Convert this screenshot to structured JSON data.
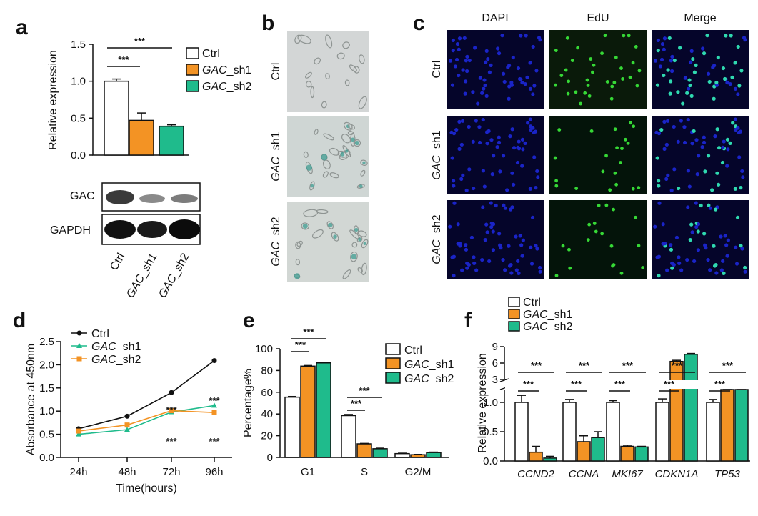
{
  "panel_labels": [
    "a",
    "b",
    "c",
    "d",
    "e",
    "f"
  ],
  "colors": {
    "ctrl": "#ffffff",
    "sh1": "#f39324",
    "sh2": "#1fbb8c",
    "edge": "#111111",
    "dapi": "#1a24c8",
    "edu": "#36d836"
  },
  "panel_b": {
    "row_labels": [
      "Ctrl",
      "GAC_sh1",
      "GAC_sh2"
    ]
  },
  "panel_c": {
    "col_labels": [
      "DAPI",
      "EdU",
      "Merge"
    ],
    "row_labels": [
      "Ctrl",
      "GAC_sh1",
      "GAC_sh2"
    ]
  },
  "western": {
    "labels": [
      "GAC",
      "GAPDH"
    ],
    "lanes": [
      "Ctrl",
      "GAC_sh1",
      "GAC_sh2"
    ]
  },
  "chart_data": [
    {
      "panel": "a",
      "type": "bar",
      "categories": [
        "Ctrl",
        "GAC_sh1",
        "GAC_sh2"
      ],
      "values": [
        1.0,
        0.47,
        0.39
      ],
      "errors": [
        0.03,
        0.1,
        0.02
      ],
      "ylabel": "Relative expression",
      "ylim": [
        0,
        1.5
      ],
      "yticks": [
        "0.0",
        "0.5",
        "1.0",
        "1.5"
      ],
      "legend": [
        "Ctrl",
        "GAC_sh1",
        "GAC_sh2"
      ],
      "significance": [
        "***",
        "***"
      ]
    },
    {
      "panel": "d",
      "type": "line",
      "x": [
        "24h",
        "48h",
        "72h",
        "96h"
      ],
      "series": [
        {
          "name": "Ctrl",
          "values": [
            0.62,
            0.89,
            1.4,
            2.09
          ]
        },
        {
          "name": "GAC_sh1",
          "values": [
            0.5,
            0.6,
            0.98,
            1.12
          ]
        },
        {
          "name": "GAC_sh2",
          "values": [
            0.57,
            0.7,
            1.01,
            0.97
          ]
        }
      ],
      "xlabel": "Time(hours)",
      "ylabel": "Absorbance at 450nm",
      "ylim": [
        0,
        2.5
      ],
      "yticks": [
        "0.0",
        "0.5",
        "1.0",
        "1.5",
        "2.0",
        "2.5"
      ],
      "significance": [
        "***",
        "***",
        "***",
        "***"
      ]
    },
    {
      "panel": "e",
      "type": "bar",
      "categories": [
        "G1",
        "S",
        "G2/M"
      ],
      "series": [
        {
          "name": "Ctrl",
          "values": [
            55.5,
            38.5,
            3.5
          ],
          "errors": [
            0.6,
            1.0,
            0.4
          ]
        },
        {
          "name": "GAC_sh1",
          "values": [
            84.0,
            12.5,
            2.5
          ],
          "errors": [
            0.6,
            0.4,
            0.3
          ]
        },
        {
          "name": "GAC_sh2",
          "values": [
            87.0,
            8.0,
            4.5
          ],
          "errors": [
            0.5,
            0.5,
            0.4
          ]
        }
      ],
      "ylabel": "Percentage%",
      "ylim": [
        0,
        100
      ],
      "yticks": [
        "0",
        "20",
        "40",
        "60",
        "80",
        "100"
      ],
      "significance": [
        "***",
        "***",
        "***",
        "***"
      ]
    },
    {
      "panel": "f",
      "type": "bar",
      "categories": [
        "CCND2",
        "CCNA",
        "MKI67",
        "CDKN1A",
        "TP53"
      ],
      "series": [
        {
          "name": "Ctrl",
          "values": [
            1.0,
            1.0,
            1.0,
            1.0,
            1.0
          ],
          "errors": [
            0.12,
            0.05,
            0.03,
            0.06,
            0.05
          ]
        },
        {
          "name": "GAC_sh1",
          "values": [
            0.15,
            0.33,
            0.25,
            6.3,
            2.4
          ],
          "errors": [
            0.1,
            0.1,
            0.02,
            0.2,
            0.1
          ]
        },
        {
          "name": "GAC_sh2",
          "values": [
            0.05,
            0.4,
            0.24,
            7.6,
            2.5
          ],
          "errors": [
            0.03,
            0.1,
            0.01,
            0.15,
            0.1
          ]
        }
      ],
      "ylabel": "Relative expression",
      "yaxis_break": true,
      "yticks_lower": [
        "0.0",
        "0.5",
        "1.0"
      ],
      "yticks_upper": [
        "3",
        "6",
        "9"
      ],
      "significance": [
        "***",
        "***",
        "***",
        "***",
        "***",
        "***",
        "***",
        "***",
        "***",
        "***"
      ]
    }
  ]
}
